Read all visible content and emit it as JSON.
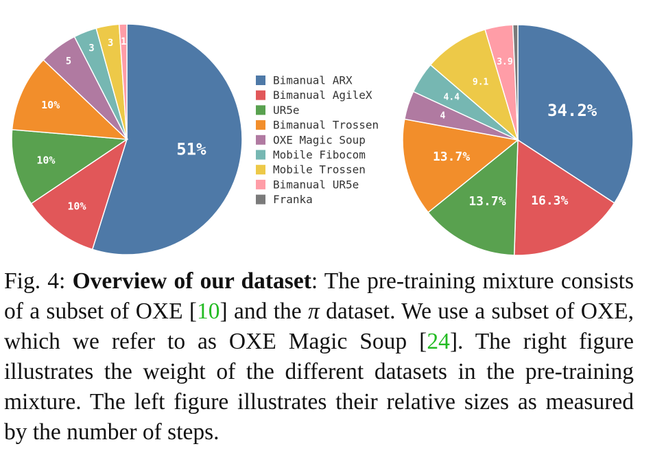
{
  "chart_data": [
    {
      "type": "pie",
      "slices": [
        {
          "label": "Bimanual ARX",
          "value": 51,
          "text": "51%"
        },
        {
          "label": "Bimanual AgileX",
          "value": 10,
          "text": "10%"
        },
        {
          "label": "UR5e",
          "value": 10,
          "text": "10%"
        },
        {
          "label": "Bimanual Trossen",
          "value": 10,
          "text": "10%"
        },
        {
          "label": "OXE Magic Soup",
          "value": 5,
          "text": "5"
        },
        {
          "label": "Mobile Fibocom",
          "value": 3,
          "text": "3"
        },
        {
          "label": "Mobile Trossen",
          "value": 3,
          "text": "3"
        },
        {
          "label": "Bimanual UR5e",
          "value": 1,
          "text": "1"
        },
        {
          "label": "Franka",
          "value": 0,
          "text": ""
        }
      ]
    },
    {
      "type": "pie",
      "slices": [
        {
          "label": "Bimanual ARX",
          "value": 34.2,
          "text": "34.2%"
        },
        {
          "label": "Bimanual AgileX",
          "value": 16.3,
          "text": "16.3%"
        },
        {
          "label": "UR5e",
          "value": 13.7,
          "text": "13.7%"
        },
        {
          "label": "Bimanual Trossen",
          "value": 13.7,
          "text": "13.7%"
        },
        {
          "label": "OXE Magic Soup",
          "value": 4,
          "text": "4"
        },
        {
          "label": "Mobile Fibocom",
          "value": 4.4,
          "text": "4.4"
        },
        {
          "label": "Mobile Trossen",
          "value": 9.1,
          "text": "9.1"
        },
        {
          "label": "Bimanual UR5e",
          "value": 3.9,
          "text": "3.9"
        },
        {
          "label": "Franka",
          "value": 0.7,
          "text": ""
        }
      ]
    }
  ],
  "legend": [
    {
      "label": "Bimanual ARX",
      "color": "#4e79a7"
    },
    {
      "label": "Bimanual AgileX",
      "color": "#e15759"
    },
    {
      "label": "UR5e",
      "color": "#59a14f"
    },
    {
      "label": "Bimanual Trossen",
      "color": "#f28e2b"
    },
    {
      "label": "OXE Magic Soup",
      "color": "#b07aa1"
    },
    {
      "label": "Mobile Fibocom",
      "color": "#76b7b2"
    },
    {
      "label": "Mobile Trossen",
      "color": "#edc948"
    },
    {
      "label": "Bimanual UR5e",
      "color": "#ff9da7"
    },
    {
      "label": "Franka",
      "color": "#7a7a7a"
    }
  ],
  "caption": {
    "prefix": "Fig. 4: ",
    "title": "Overview of our dataset",
    "part1": ": The pre-training mixture consists of a subset of OXE [",
    "cite1": "10",
    "part2": "] and the ",
    "pi": "π",
    "part3": " dataset. We use a subset of OXE, which we refer to as OXE Magic Soup [",
    "cite2": "24",
    "part4": "]. The right figure illustrates the weight of the different datasets in the pre-training mixture. The left figure illustrates their relative sizes as measured by the number of steps."
  }
}
